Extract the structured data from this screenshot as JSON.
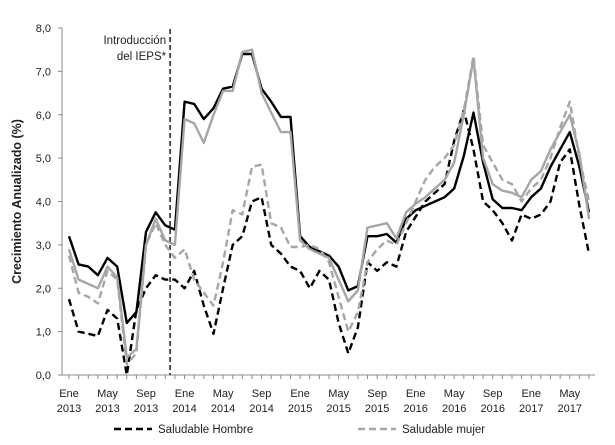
{
  "chart_data": {
    "type": "line",
    "title": "",
    "ylabel": "Crecimiento Anualizado (%)",
    "xlabel": "",
    "ylim": [
      0,
      8
    ],
    "y_ticks": [
      "0,0",
      "1,0",
      "2,0",
      "3,0",
      "4,0",
      "5,0",
      "6,0",
      "7,0",
      "8,0"
    ],
    "grid": false,
    "legend_position": "bottom",
    "x_tick_labels": [
      {
        "month": "Ene",
        "year": "2013",
        "index": 0
      },
      {
        "month": "May",
        "year": "2013",
        "index": 4
      },
      {
        "month": "Sep",
        "year": "2013",
        "index": 8
      },
      {
        "month": "Ene",
        "year": "2014",
        "index": 12
      },
      {
        "month": "May",
        "year": "2014",
        "index": 16
      },
      {
        "month": "Sep",
        "year": "2014",
        "index": 20
      },
      {
        "month": "Ene",
        "year": "2015",
        "index": 24
      },
      {
        "month": "May",
        "year": "2015",
        "index": 28
      },
      {
        "month": "Sep",
        "year": "2015",
        "index": 32
      },
      {
        "month": "Ene",
        "year": "2016",
        "index": 36
      },
      {
        "month": "May",
        "year": "2016",
        "index": 40
      },
      {
        "month": "Sep",
        "year": "2016",
        "index": 44
      },
      {
        "month": "Ene",
        "year": "2017",
        "index": 48
      },
      {
        "month": "May",
        "year": "2017",
        "index": 52
      }
    ],
    "annotation": {
      "lines": [
        "Introducción",
        "del IEPS*"
      ],
      "x_index": 10.5
    },
    "series": [
      {
        "name": "Saludable Hombre",
        "style": "dashed",
        "color": "#000000",
        "values": [
          1.75,
          1.0,
          0.95,
          0.9,
          1.5,
          1.3,
          0.0,
          1.5,
          2.0,
          2.3,
          2.2,
          2.2,
          2.0,
          2.4,
          1.6,
          0.95,
          2.0,
          3.0,
          3.2,
          4.0,
          4.1,
          3.0,
          2.8,
          2.5,
          2.4,
          2.0,
          2.4,
          2.2,
          1.2,
          0.5,
          1.1,
          2.6,
          2.4,
          2.6,
          2.5,
          3.3,
          3.65,
          4.0,
          4.2,
          4.4,
          5.4,
          6.1,
          5.2,
          4.0,
          3.8,
          3.5,
          3.1,
          3.7,
          3.6,
          3.7,
          4.0,
          4.9,
          5.2,
          3.9,
          2.8
        ]
      },
      {
        "name": "",
        "style": "solid",
        "color": "#000000",
        "values": [
          3.2,
          2.55,
          2.5,
          2.3,
          2.7,
          2.5,
          1.2,
          1.45,
          3.3,
          3.75,
          3.45,
          3.35,
          6.3,
          6.25,
          5.9,
          6.15,
          6.6,
          6.65,
          7.4,
          7.4,
          6.6,
          6.3,
          5.95,
          5.95,
          3.2,
          2.95,
          2.85,
          2.75,
          2.5,
          1.95,
          2.05,
          3.2,
          3.2,
          3.25,
          3.05,
          3.6,
          3.8,
          3.9,
          4.0,
          4.1,
          4.3,
          5.05,
          6.05,
          4.9,
          4.05,
          3.85,
          3.85,
          3.8,
          4.1,
          4.3,
          4.8,
          5.2,
          5.6,
          4.8,
          3.75
        ]
      },
      {
        "name": "Saludable mujer",
        "style": "dashed",
        "color": "#a6a6a6",
        "values": [
          2.75,
          1.9,
          1.8,
          1.65,
          2.4,
          2.2,
          0.25,
          0.5,
          3.0,
          3.5,
          3.0,
          2.7,
          2.9,
          2.2,
          1.9,
          1.6,
          2.6,
          3.8,
          3.7,
          4.8,
          4.85,
          3.5,
          3.4,
          2.95,
          2.95,
          3.0,
          2.9,
          2.6,
          1.8,
          1.0,
          1.45,
          2.6,
          2.9,
          3.1,
          3.0,
          3.5,
          4.0,
          4.5,
          4.8,
          5.0,
          5.3,
          6.1,
          7.35,
          5.3,
          4.9,
          4.5,
          4.4,
          4.0,
          4.3,
          4.5,
          5.0,
          5.7,
          6.3,
          5.0,
          4.0
        ]
      },
      {
        "name": "",
        "style": "solid",
        "color": "#a6a6a6",
        "values": [
          2.9,
          2.2,
          2.1,
          2.0,
          2.5,
          2.25,
          0.4,
          0.6,
          3.0,
          3.6,
          3.1,
          3.0,
          5.9,
          5.8,
          5.35,
          6.0,
          6.55,
          6.55,
          7.45,
          7.5,
          6.5,
          6.05,
          5.6,
          5.6,
          3.1,
          2.9,
          2.8,
          2.7,
          2.2,
          1.7,
          1.95,
          3.4,
          3.45,
          3.5,
          3.15,
          3.75,
          3.95,
          4.1,
          4.3,
          4.5,
          4.9,
          6.0,
          7.3,
          5.0,
          4.4,
          4.25,
          4.2,
          4.1,
          4.5,
          4.7,
          5.2,
          5.6,
          6.0,
          5.1,
          3.6
        ]
      }
    ]
  }
}
